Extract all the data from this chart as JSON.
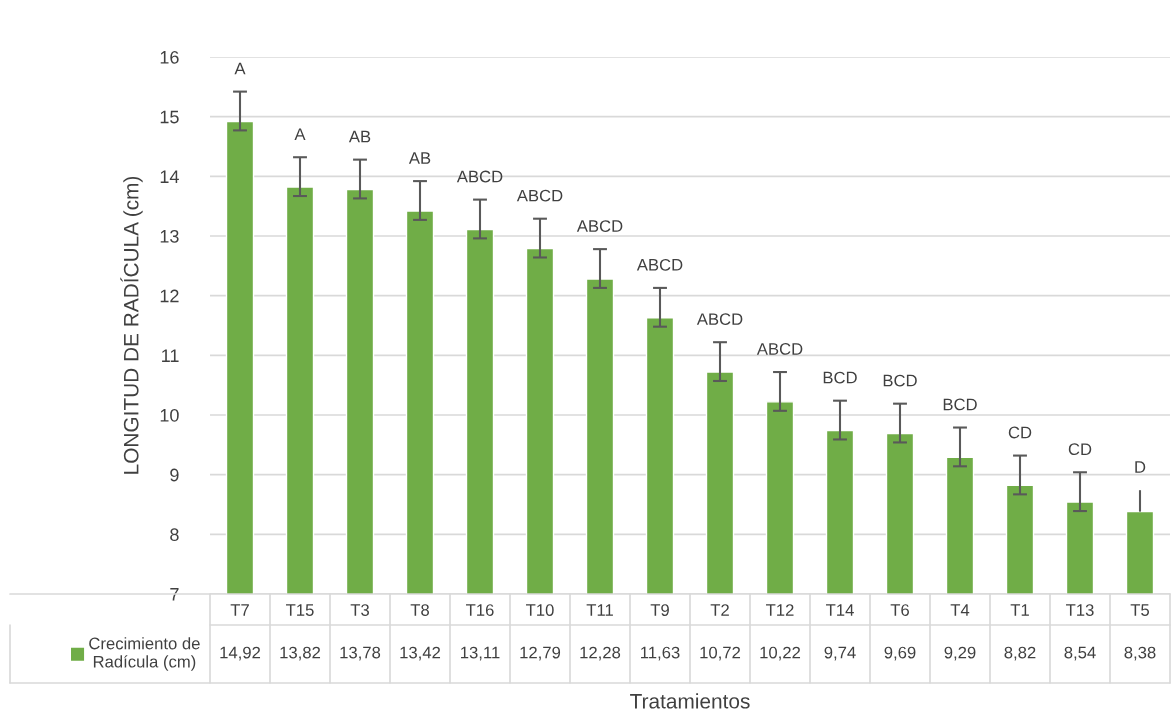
{
  "chart_data": {
    "type": "bar",
    "xlabel": "Tratamientos",
    "ylabel": "LONGITUD DE RADÍCULA (cm)",
    "categories": [
      "T7",
      "T15",
      "T3",
      "T8",
      "T16",
      "T10",
      "T11",
      "T9",
      "T2",
      "T12",
      "T14",
      "T6",
      "T4",
      "T1",
      "T13",
      "T5"
    ],
    "series": [
      {
        "name": "Crecimiento de Radícula (cm)",
        "color": "#70ad47",
        "values": [
          14.92,
          13.82,
          13.78,
          13.42,
          13.11,
          12.79,
          12.28,
          11.63,
          10.72,
          10.22,
          9.74,
          9.69,
          9.29,
          8.82,
          8.54,
          8.38
        ],
        "errors": [
          [
            14.77,
            15.42
          ],
          [
            13.67,
            14.32
          ],
          [
            13.63,
            14.28
          ],
          [
            13.27,
            13.92
          ],
          [
            12.96,
            13.61
          ],
          [
            12.64,
            13.29
          ],
          [
            12.13,
            12.78
          ],
          [
            11.48,
            12.13
          ],
          [
            10.57,
            11.22
          ],
          [
            10.07,
            10.72
          ],
          [
            9.59,
            10.24
          ],
          [
            9.54,
            10.19
          ],
          [
            9.14,
            9.79
          ],
          [
            8.67,
            9.32
          ],
          [
            8.39,
            9.04
          ],
          [
            8.38,
            8.74
          ]
        ]
      }
    ],
    "value_labels": [
      "14,92",
      "13,82",
      "13,78",
      "13,42",
      "13,11",
      "12,79",
      "12,28",
      "11,63",
      "10,72",
      "10,22",
      "9,74",
      "9,69",
      "9,29",
      "8,82",
      "8,54",
      "8,38"
    ],
    "annotations": [
      "A",
      "A",
      "AB",
      "AB",
      "ABCD",
      "ABCD",
      "ABCD",
      "ABCD",
      "ABCD",
      "ABCD",
      "BCD",
      "BCD",
      "BCD",
      "CD",
      "CD",
      "D"
    ],
    "ylim": [
      7,
      16
    ],
    "yticks": [
      7,
      8,
      9,
      10,
      11,
      12,
      13,
      14,
      15,
      16
    ],
    "grid": "y",
    "legend": "bottom left"
  }
}
